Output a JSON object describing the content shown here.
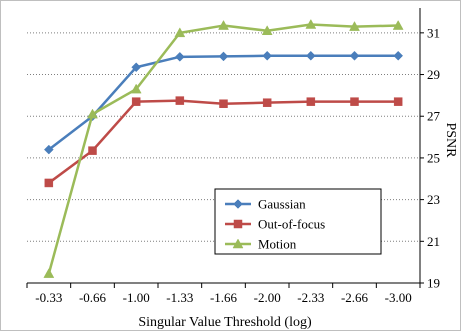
{
  "chart_data": {
    "type": "line",
    "xlabel": "Singular Value Threshold (log)",
    "ylabel": "PSNR",
    "categories": [
      "-0.33",
      "-0.66",
      "-1.00",
      "-1.33",
      "-1.66",
      "-2.00",
      "-2.33",
      "-2.66",
      "-3.00"
    ],
    "y_ticks": [
      "19",
      "21",
      "23",
      "25",
      "27",
      "29",
      "31"
    ],
    "ylim": [
      19,
      32
    ],
    "y_axis_side": "right",
    "grid": "horizontal-dotted",
    "legend_position": "bottom-right",
    "series": [
      {
        "name": "Gaussian",
        "marker": "diamond",
        "color": "#4a7ebb",
        "values": [
          25.4,
          27.0,
          29.35,
          29.85,
          29.87,
          29.9,
          29.9,
          29.9,
          29.9
        ]
      },
      {
        "name": "Out-of-focus",
        "marker": "square",
        "color": "#be4b48",
        "values": [
          23.8,
          25.35,
          27.7,
          27.75,
          27.6,
          27.65,
          27.7,
          27.7,
          27.7
        ]
      },
      {
        "name": "Motion",
        "marker": "triangle",
        "color": "#9bbb59",
        "values": [
          19.45,
          27.1,
          28.3,
          31.0,
          31.35,
          31.1,
          31.4,
          31.3,
          31.35
        ]
      }
    ]
  }
}
